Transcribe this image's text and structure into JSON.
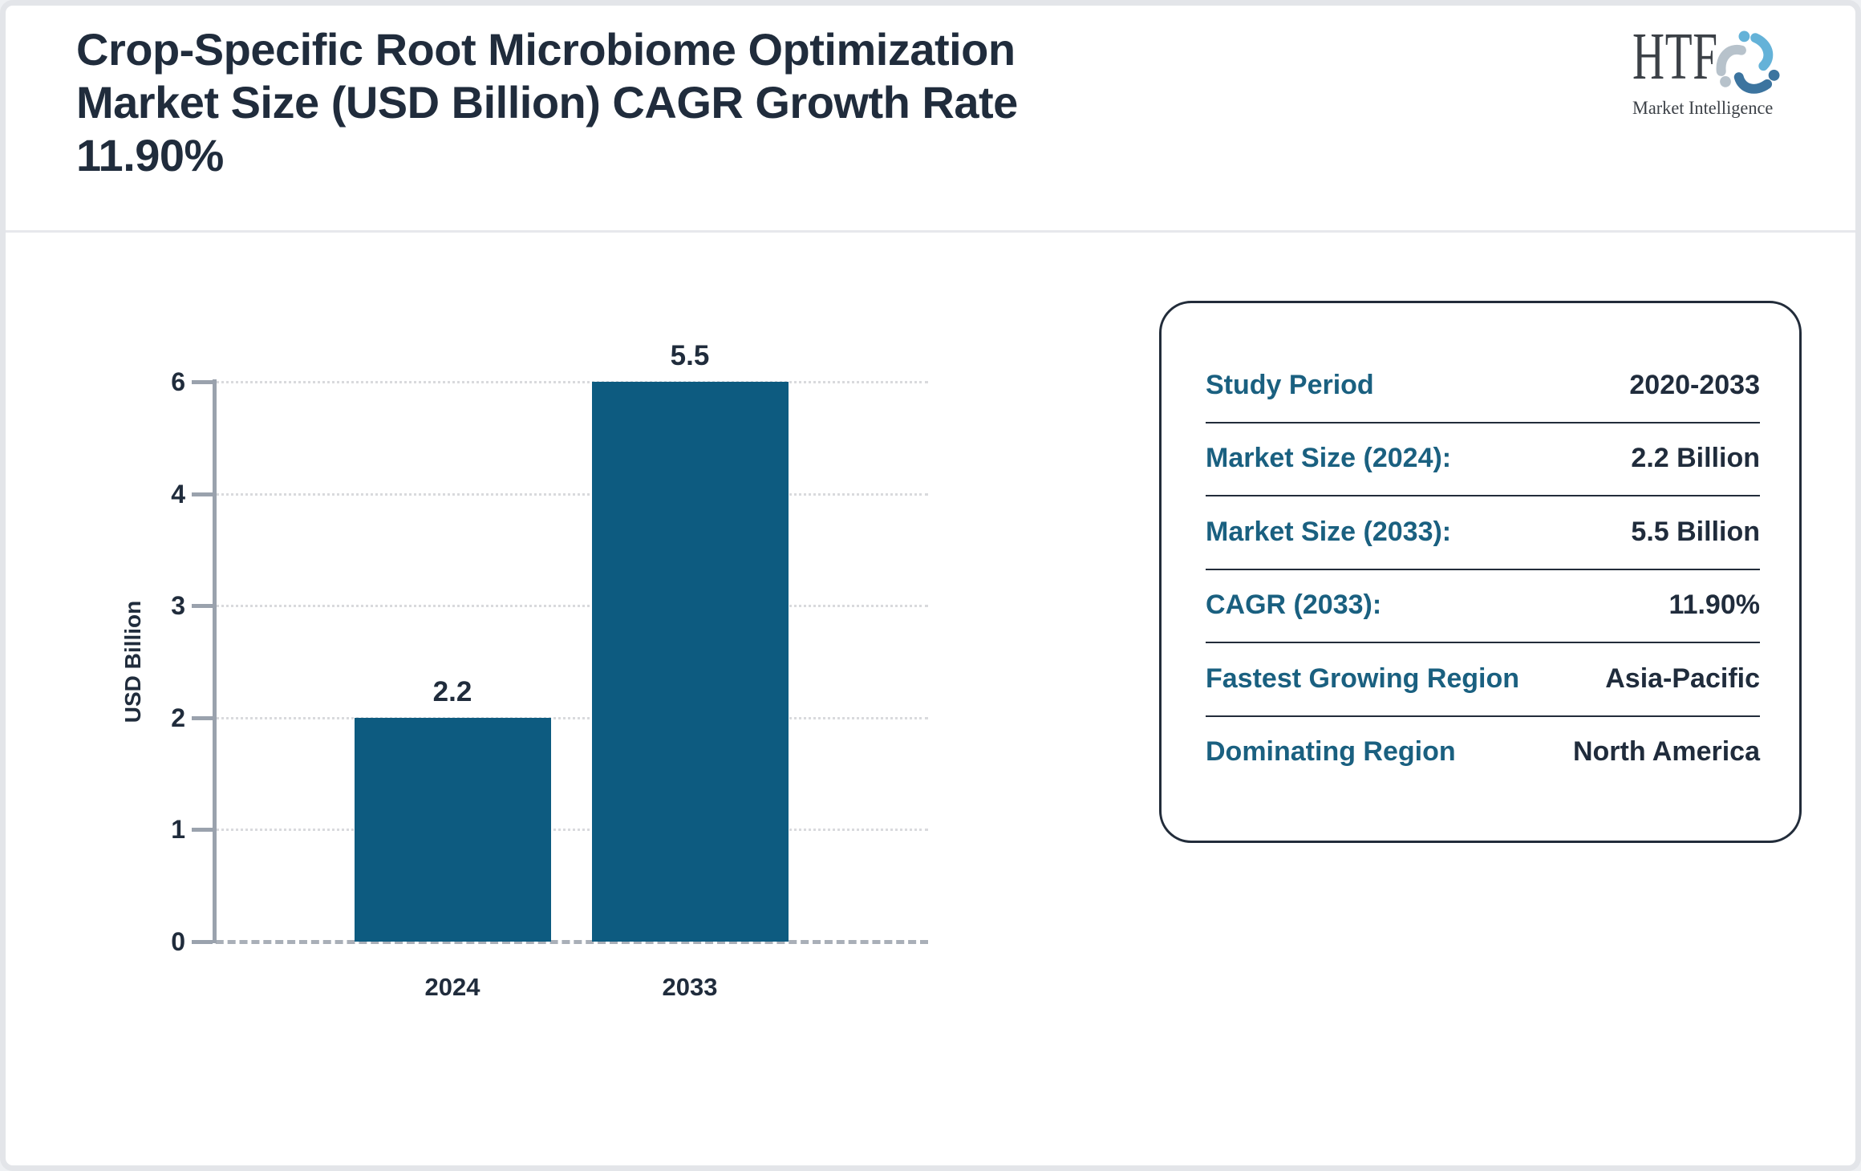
{
  "header": {
    "title": "Crop-Specific Root Microbiome Optimization\nMarket Size (USD Billion) CAGR Growth Rate\n11.90%",
    "logo": {
      "name": "HTF",
      "tagline": "Market Intelligence"
    }
  },
  "chart_data": {
    "type": "bar",
    "title": "Crop-Specific Root Microbiome Optimization Market Size (USD Billion) CAGR Growth Rate 11.90%",
    "categories": [
      "2024",
      "2033"
    ],
    "values": [
      2.2,
      5.5
    ],
    "bar_labels": [
      "2.2",
      "5.5"
    ],
    "xlabel": "",
    "ylabel": "USD Billion",
    "yticks": [
      "0",
      "1",
      "2",
      "3",
      "4",
      "6"
    ],
    "ylim": [
      0,
      6
    ],
    "grid": "horizontal-dotted",
    "legend": "none",
    "bar_color": "#0d5b80"
  },
  "panel": {
    "rows": [
      {
        "label": "Study Period",
        "value": "2020-2033"
      },
      {
        "label": "Market Size (2024):",
        "value": "2.2 Billion"
      },
      {
        "label": "Market Size (2033):",
        "value": "5.5 Billion"
      },
      {
        "label": "CAGR (2033):",
        "value": "11.90%"
      },
      {
        "label": "Fastest Growing Region",
        "value": "Asia-Pacific"
      },
      {
        "label": "Dominating Region",
        "value": "North America"
      }
    ]
  },
  "colors": {
    "accent_teal": "#1a6080",
    "bar_teal": "#0d5b80",
    "text_dark": "#202c3c",
    "logo_light_blue": "#64b2d8",
    "logo_steel_blue": "#3c749f",
    "logo_gray": "#b7c2cb"
  }
}
